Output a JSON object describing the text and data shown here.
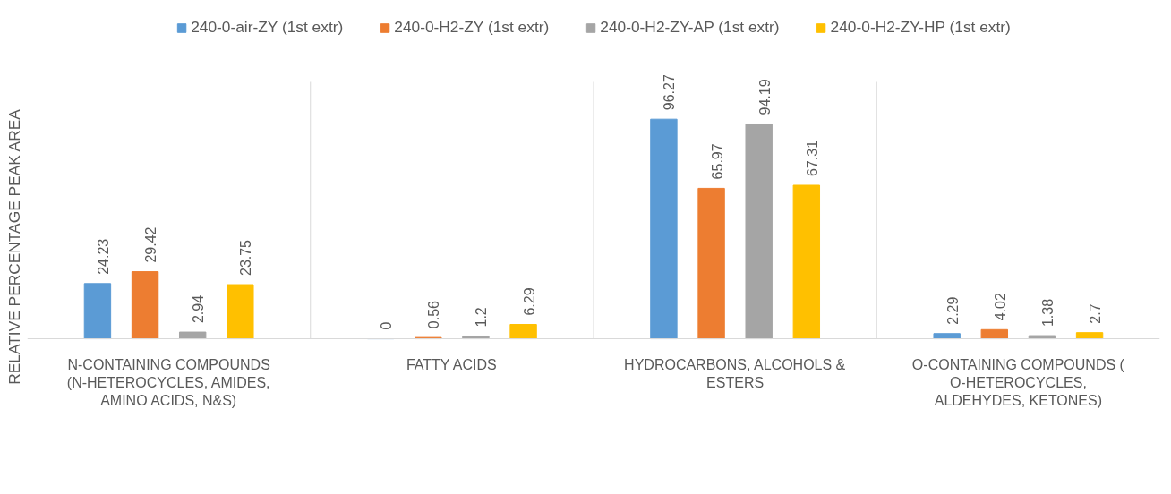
{
  "chart_data": {
    "type": "bar",
    "ylabel": "RELATIVE PERCENTAGE PEAK AREA",
    "categories": [
      "N-CONTAINING COMPOUNDS (N-HETEROCYCLES, AMIDES, AMINO ACIDS, N&S)",
      "FATTY ACIDS",
      "HYDROCARBONS, ALCOHOLS & ESTERS",
      "O-CONTAINING COMPOUNDS ( O-HETEROCYCLES, ALDEHYDES, KETONES)"
    ],
    "series": [
      {
        "name": "240-0-air-ZY (1st extr)",
        "color": "#5b9bd5",
        "values": [
          24.23,
          0,
          96.27,
          2.29
        ]
      },
      {
        "name": "240-0-H2-ZY (1st extr)",
        "color": "#ed7d31",
        "values": [
          29.42,
          0.56,
          65.97,
          4.02
        ]
      },
      {
        "name": "240-0-H2-ZY-AP (1st extr)",
        "color": "#a5a5a5",
        "values": [
          2.94,
          1.2,
          94.19,
          1.38
        ]
      },
      {
        "name": "240-0-H2-ZY-HP (1st extr)",
        "color": "#ffc000",
        "values": [
          23.75,
          6.29,
          67.31,
          2.7
        ]
      }
    ],
    "data_labels": true,
    "legend": "top",
    "grid": false
  }
}
